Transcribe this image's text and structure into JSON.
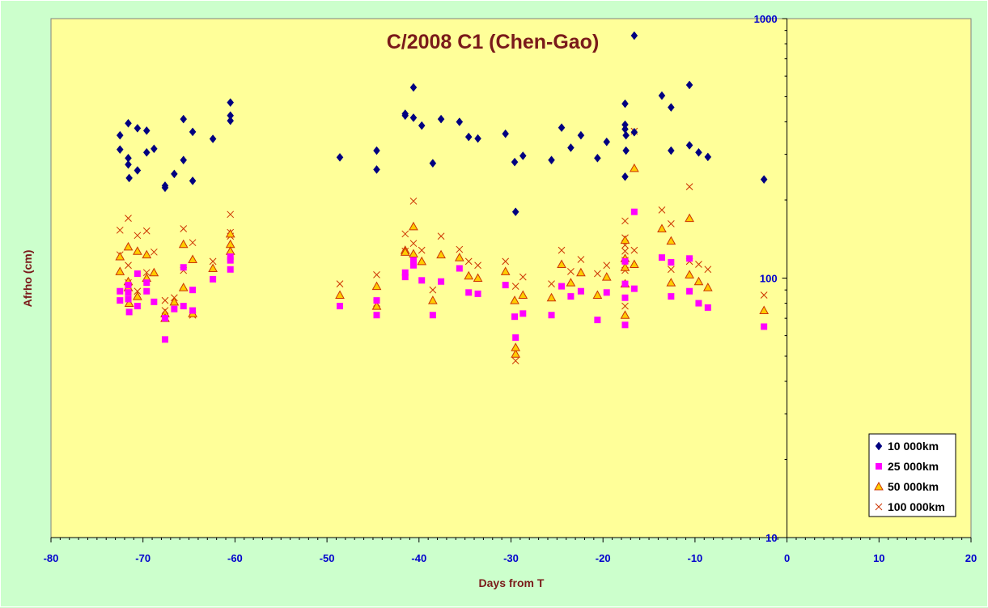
{
  "chart_data": {
    "type": "scatter",
    "title": "C/2008 C1 (Chen-Gao)",
    "xlabel": "Days from T",
    "ylabel": "Afrho (cm)",
    "xlim": [
      -80,
      20
    ],
    "ylim": [
      10,
      1000
    ],
    "y_scale": "log",
    "x_ticks": [
      "-80",
      "-70",
      "-60",
      "-50",
      "-40",
      "-30",
      "-20",
      "-10",
      "0",
      "10",
      "20"
    ],
    "y_ticks": [
      "10",
      "100",
      "1000"
    ],
    "grid": false,
    "legend_position": "bottom-right",
    "colors": {
      "plot_background": "#ffff99",
      "page_background": "#ccffcc",
      "title": "#7a1a1a",
      "tick_labels": "#0000cc"
    },
    "series": [
      {
        "name": "10 000km",
        "marker": "diamond",
        "color": "#000080",
        "points": [
          [
            -72.5,
            355
          ],
          [
            -72.5,
            313
          ],
          [
            -71.6,
            395
          ],
          [
            -71.6,
            290
          ],
          [
            -71.6,
            274
          ],
          [
            -71.5,
            243
          ],
          [
            -70.6,
            378
          ],
          [
            -70.6,
            260
          ],
          [
            -69.6,
            370
          ],
          [
            -69.6,
            305
          ],
          [
            -68.8,
            315
          ],
          [
            -67.6,
            227
          ],
          [
            -67.6,
            223
          ],
          [
            -66.6,
            252
          ],
          [
            -65.6,
            410
          ],
          [
            -65.6,
            285
          ],
          [
            -64.6,
            366
          ],
          [
            -64.6,
            237
          ],
          [
            -62.4,
            344
          ],
          [
            -60.5,
            475
          ],
          [
            -60.5,
            423
          ],
          [
            -60.5,
            404
          ],
          [
            -48.6,
            292
          ],
          [
            -44.6,
            310
          ],
          [
            -44.6,
            262
          ],
          [
            -41.5,
            430
          ],
          [
            -41.5,
            423
          ],
          [
            -40.6,
            543
          ],
          [
            -40.6,
            415
          ],
          [
            -39.7,
            387
          ],
          [
            -38.5,
            277
          ],
          [
            -37.6,
            410
          ],
          [
            -35.6,
            400
          ],
          [
            -34.6,
            350
          ],
          [
            -33.6,
            345
          ],
          [
            -30.6,
            360
          ],
          [
            -29.6,
            280
          ],
          [
            -29.5,
            180
          ],
          [
            -28.7,
            296
          ],
          [
            -25.6,
            285
          ],
          [
            -24.5,
            380
          ],
          [
            -23.5,
            318
          ],
          [
            -22.4,
            355
          ],
          [
            -20.6,
            290
          ],
          [
            -19.6,
            335
          ],
          [
            -17.6,
            470
          ],
          [
            -17.6,
            390
          ],
          [
            -17.6,
            375
          ],
          [
            -17.5,
            355
          ],
          [
            -17.5,
            310
          ],
          [
            -17.6,
            246
          ],
          [
            -16.6,
            860
          ],
          [
            -16.6,
            365
          ],
          [
            -13.6,
            505
          ],
          [
            -12.6,
            455
          ],
          [
            -12.6,
            310
          ],
          [
            -10.6,
            555
          ],
          [
            -10.6,
            325
          ],
          [
            -9.6,
            305
          ],
          [
            -8.6,
            293
          ],
          [
            -2.5,
            240
          ]
        ]
      },
      {
        "name": "25 000km",
        "marker": "square",
        "color": "#ff00ff",
        "points": [
          [
            -72.5,
            89
          ],
          [
            -72.5,
            82
          ],
          [
            -71.6,
            94
          ],
          [
            -71.6,
            88
          ],
          [
            -71.6,
            83
          ],
          [
            -71.5,
            74
          ],
          [
            -70.6,
            104
          ],
          [
            -70.6,
            78
          ],
          [
            -69.6,
            96
          ],
          [
            -69.6,
            89
          ],
          [
            -68.8,
            81
          ],
          [
            -67.6,
            70
          ],
          [
            -67.6,
            58
          ],
          [
            -66.6,
            76
          ],
          [
            -65.6,
            110
          ],
          [
            -65.6,
            78
          ],
          [
            -64.6,
            90
          ],
          [
            -64.6,
            75
          ],
          [
            -62.4,
            99
          ],
          [
            -60.5,
            121
          ],
          [
            -60.5,
            117
          ],
          [
            -60.5,
            108
          ],
          [
            -48.6,
            78
          ],
          [
            -44.6,
            82
          ],
          [
            -44.6,
            72
          ],
          [
            -41.5,
            105
          ],
          [
            -41.5,
            101
          ],
          [
            -40.6,
            117
          ],
          [
            -40.6,
            112
          ],
          [
            -39.7,
            98
          ],
          [
            -38.5,
            72
          ],
          [
            -37.6,
            97
          ],
          [
            -35.6,
            109
          ],
          [
            -34.6,
            88
          ],
          [
            -33.6,
            87
          ],
          [
            -30.6,
            94
          ],
          [
            -29.6,
            71
          ],
          [
            -29.5,
            59
          ],
          [
            -28.7,
            73
          ],
          [
            -25.6,
            72
          ],
          [
            -24.5,
            93
          ],
          [
            -23.5,
            85
          ],
          [
            -22.4,
            89
          ],
          [
            -20.6,
            69
          ],
          [
            -19.6,
            88
          ],
          [
            -17.6,
            116
          ],
          [
            -17.6,
            95
          ],
          [
            -17.6,
            84
          ],
          [
            -17.6,
            66
          ],
          [
            -16.6,
            180
          ],
          [
            -16.6,
            91
          ],
          [
            -13.6,
            120
          ],
          [
            -12.6,
            115
          ],
          [
            -12.6,
            85
          ],
          [
            -10.6,
            119
          ],
          [
            -10.6,
            89
          ],
          [
            -9.6,
            80
          ],
          [
            -8.6,
            77
          ],
          [
            -2.5,
            65
          ]
        ]
      },
      {
        "name": "50 000km",
        "marker": "triangle",
        "color": "#ffcc00",
        "stroke": "#cc3300",
        "points": [
          [
            -72.5,
            121
          ],
          [
            -72.5,
            106
          ],
          [
            -71.6,
            132
          ],
          [
            -71.6,
            97
          ],
          [
            -71.6,
            92
          ],
          [
            -71.5,
            80
          ],
          [
            -70.6,
            127
          ],
          [
            -70.6,
            85
          ],
          [
            -69.6,
            123
          ],
          [
            -69.6,
            100
          ],
          [
            -68.8,
            105
          ],
          [
            -67.6,
            73
          ],
          [
            -67.6,
            70
          ],
          [
            -66.6,
            81
          ],
          [
            -65.6,
            135
          ],
          [
            -65.6,
            92
          ],
          [
            -64.6,
            118
          ],
          [
            -64.6,
            73
          ],
          [
            -62.4,
            109
          ],
          [
            -60.5,
            148
          ],
          [
            -60.5,
            135
          ],
          [
            -60.5,
            127
          ],
          [
            -48.6,
            86
          ],
          [
            -44.6,
            93
          ],
          [
            -44.6,
            78
          ],
          [
            -41.5,
            128
          ],
          [
            -41.5,
            126
          ],
          [
            -40.6,
            158
          ],
          [
            -40.6,
            124
          ],
          [
            -39.7,
            116
          ],
          [
            -38.5,
            82
          ],
          [
            -37.6,
            123
          ],
          [
            -35.6,
            120
          ],
          [
            -34.6,
            102
          ],
          [
            -33.6,
            100
          ],
          [
            -30.6,
            106
          ],
          [
            -29.6,
            82
          ],
          [
            -29.5,
            51
          ],
          [
            -29.5,
            54
          ],
          [
            -28.7,
            86
          ],
          [
            -25.6,
            84
          ],
          [
            -24.5,
            113
          ],
          [
            -23.5,
            96
          ],
          [
            -22.4,
            105
          ],
          [
            -20.6,
            86
          ],
          [
            -19.6,
            101
          ],
          [
            -17.6,
            140
          ],
          [
            -17.6,
            119
          ],
          [
            -17.6,
            110
          ],
          [
            -17.6,
            95
          ],
          [
            -17.6,
            72
          ],
          [
            -16.6,
            265
          ],
          [
            -16.6,
            113
          ],
          [
            -13.6,
            155
          ],
          [
            -12.6,
            139
          ],
          [
            -12.6,
            96
          ],
          [
            -10.6,
            170
          ],
          [
            -10.6,
            103
          ],
          [
            -9.6,
            97
          ],
          [
            -8.6,
            92
          ],
          [
            -2.5,
            75
          ]
        ]
      },
      {
        "name": "100 000km",
        "marker": "cross",
        "color": "#cc3300",
        "points": [
          [
            -72.5,
            153
          ],
          [
            -72.5,
            123
          ],
          [
            -71.6,
            170
          ],
          [
            -71.6,
            112
          ],
          [
            -71.6,
            96
          ],
          [
            -71.5,
            92
          ],
          [
            -70.6,
            146
          ],
          [
            -70.6,
            89
          ],
          [
            -69.6,
            152
          ],
          [
            -69.6,
            105
          ],
          [
            -68.8,
            126
          ],
          [
            -67.6,
            82
          ],
          [
            -67.6,
            75
          ],
          [
            -66.6,
            84
          ],
          [
            -65.6,
            155
          ],
          [
            -65.6,
            107
          ],
          [
            -64.6,
            137
          ],
          [
            -64.6,
            72
          ],
          [
            -62.4,
            116
          ],
          [
            -60.5,
            176
          ],
          [
            -60.5,
            150
          ],
          [
            -60.5,
            145
          ],
          [
            -48.6,
            95
          ],
          [
            -44.6,
            103
          ],
          [
            -44.6,
            80
          ],
          [
            -41.5,
            148
          ],
          [
            -41.5,
            127
          ],
          [
            -40.6,
            198
          ],
          [
            -40.6,
            136
          ],
          [
            -39.7,
            128
          ],
          [
            -38.5,
            90
          ],
          [
            -37.6,
            145
          ],
          [
            -35.6,
            129
          ],
          [
            -34.6,
            116
          ],
          [
            -33.6,
            112
          ],
          [
            -30.6,
            116
          ],
          [
            -29.5,
            93
          ],
          [
            -29.5,
            48
          ],
          [
            -28.7,
            101
          ],
          [
            -25.6,
            95
          ],
          [
            -24.5,
            128
          ],
          [
            -23.5,
            106
          ],
          [
            -22.4,
            118
          ],
          [
            -20.6,
            104
          ],
          [
            -19.6,
            112
          ],
          [
            -17.6,
            166
          ],
          [
            -17.6,
            143
          ],
          [
            -17.6,
            134
          ],
          [
            -17.6,
            127
          ],
          [
            -17.6,
            117
          ],
          [
            -17.6,
            107
          ],
          [
            -17.6,
            78
          ],
          [
            -16.6,
            368
          ],
          [
            -16.6,
            128
          ],
          [
            -13.6,
            183
          ],
          [
            -12.6,
            162
          ],
          [
            -12.6,
            108
          ],
          [
            -10.6,
            225
          ],
          [
            -10.6,
            116
          ],
          [
            -9.6,
            113
          ],
          [
            -8.6,
            108
          ],
          [
            -2.5,
            86
          ]
        ]
      }
    ]
  }
}
